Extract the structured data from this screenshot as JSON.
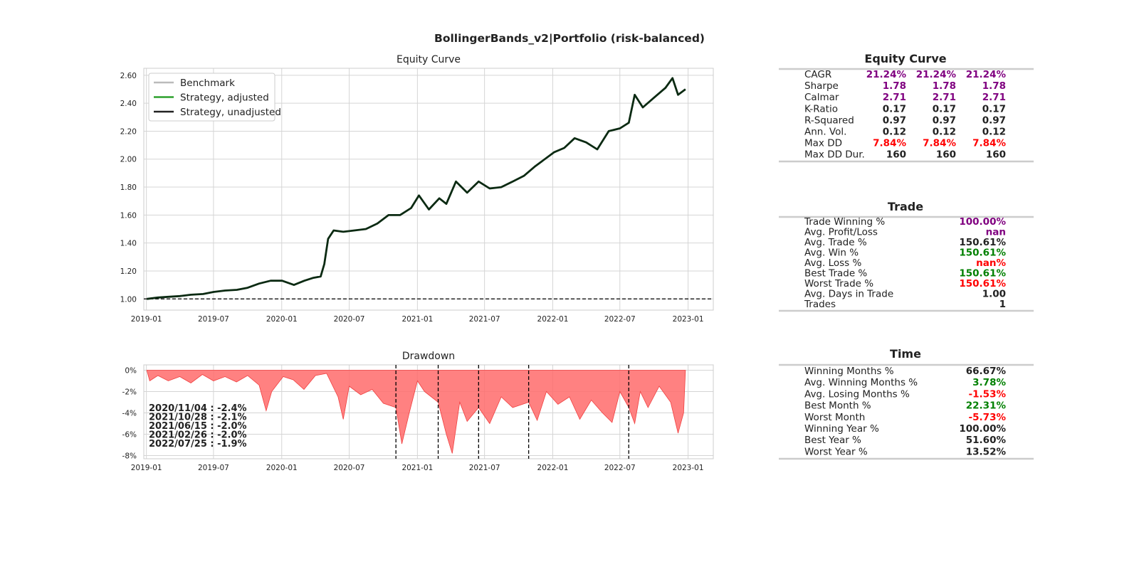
{
  "suptitle": "BollingerBands_v2|Portfolio (risk-balanced)",
  "colors": {
    "purple": "#800080",
    "red": "#ff0000",
    "green": "#008000",
    "black": "#222222",
    "benchmark": "#bbbbbb",
    "adjusted": "#2ca02c",
    "unadjusted": "#222222",
    "equity_line": "#0b2a12",
    "drawdown_fill": "#ff6b6b"
  },
  "chart_data": [
    {
      "type": "line",
      "title": "Equity Curve",
      "xlabel": "",
      "ylabel": "",
      "x_ticks": [
        "2019-01",
        "2019-07",
        "2020-01",
        "2020-07",
        "2021-01",
        "2021-07",
        "2022-01",
        "2022-07",
        "2023-01"
      ],
      "y_ticks": [
        "1.00",
        "1.20",
        "1.40",
        "1.60",
        "1.80",
        "2.00",
        "2.20",
        "2.40",
        "2.60"
      ],
      "xlim": [
        "2018-12-25",
        "2023-03-10"
      ],
      "ylim": [
        0.92,
        2.65
      ],
      "grid": true,
      "legend": {
        "position": "top-left",
        "entries": [
          {
            "name": "Benchmark",
            "color": "#bbbbbb"
          },
          {
            "name": "Strategy, adjusted",
            "color": "#2ca02c"
          },
          {
            "name": "Strategy, unadjusted",
            "color": "#222222"
          }
        ]
      },
      "baseline": 1.0,
      "series": [
        {
          "name": "Strategy, unadjusted",
          "points": [
            [
              "2019-01-02",
              1.0
            ],
            [
              "2019-02-01",
              1.01
            ],
            [
              "2019-03-01",
              1.015
            ],
            [
              "2019-04-01",
              1.02
            ],
            [
              "2019-05-01",
              1.03
            ],
            [
              "2019-06-03",
              1.035
            ],
            [
              "2019-07-01",
              1.05
            ],
            [
              "2019-08-01",
              1.06
            ],
            [
              "2019-09-02",
              1.065
            ],
            [
              "2019-10-01",
              1.08
            ],
            [
              "2019-11-01",
              1.11
            ],
            [
              "2019-12-02",
              1.13
            ],
            [
              "2020-01-02",
              1.13
            ],
            [
              "2020-02-03",
              1.1
            ],
            [
              "2020-03-02",
              1.13
            ],
            [
              "2020-03-25",
              1.15
            ],
            [
              "2020-04-15",
              1.16
            ],
            [
              "2020-04-25",
              1.25
            ],
            [
              "2020-05-05",
              1.43
            ],
            [
              "2020-05-20",
              1.49
            ],
            [
              "2020-06-15",
              1.48
            ],
            [
              "2020-07-15",
              1.49
            ],
            [
              "2020-08-15",
              1.5
            ],
            [
              "2020-09-15",
              1.54
            ],
            [
              "2020-10-15",
              1.6
            ],
            [
              "2020-11-15",
              1.6
            ],
            [
              "2020-12-15",
              1.65
            ],
            [
              "2021-01-05",
              1.74
            ],
            [
              "2021-02-01",
              1.64
            ],
            [
              "2021-03-01",
              1.72
            ],
            [
              "2021-03-20",
              1.68
            ],
            [
              "2021-04-15",
              1.84
            ],
            [
              "2021-05-15",
              1.76
            ],
            [
              "2021-06-15",
              1.84
            ],
            [
              "2021-07-15",
              1.79
            ],
            [
              "2021-08-15",
              1.8
            ],
            [
              "2021-09-15",
              1.84
            ],
            [
              "2021-10-15",
              1.88
            ],
            [
              "2021-11-15",
              1.95
            ],
            [
              "2022-01-05",
              2.05
            ],
            [
              "2022-02-01",
              2.08
            ],
            [
              "2022-03-01",
              2.15
            ],
            [
              "2022-04-01",
              2.12
            ],
            [
              "2022-05-01",
              2.07
            ],
            [
              "2022-06-01",
              2.2
            ],
            [
              "2022-07-01",
              2.22
            ],
            [
              "2022-07-25",
              2.26
            ],
            [
              "2022-08-10",
              2.46
            ],
            [
              "2022-09-01",
              2.37
            ],
            [
              "2022-10-01",
              2.44
            ],
            [
              "2022-11-01",
              2.51
            ],
            [
              "2022-11-20",
              2.58
            ],
            [
              "2022-12-05",
              2.46
            ],
            [
              "2022-12-25",
              2.5
            ]
          ]
        }
      ]
    },
    {
      "type": "area",
      "title": "Drawdown",
      "xlabel": "",
      "ylabel": "",
      "x_ticks": [
        "2019-01",
        "2019-07",
        "2020-01",
        "2020-07",
        "2021-01",
        "2021-07",
        "2022-01",
        "2022-07",
        "2023-01"
      ],
      "y_ticks": [
        "0%",
        "-2%",
        "-4%",
        "-6%",
        "-8%"
      ],
      "xlim": [
        "2018-12-25",
        "2023-03-10"
      ],
      "ylim": [
        -8.3,
        0.5
      ],
      "grid": true,
      "annotations": [
        "2020/11/04 : -2.4%",
        "2021/10/28 : -2.1%",
        "2021/06/15 : -2.0%",
        "2021/02/26 : -2.0%",
        "2022/07/25 : -1.9%"
      ],
      "vlines": [
        "2020-11-04",
        "2021-02-26",
        "2021-06-15",
        "2021-10-28",
        "2022-07-25"
      ],
      "series": [
        {
          "name": "Drawdown",
          "points": [
            [
              "2019-01-02",
              0
            ],
            [
              "2019-01-10",
              -1.0
            ],
            [
              "2019-02-01",
              -0.5
            ],
            [
              "2019-03-01",
              -1.0
            ],
            [
              "2019-04-01",
              -0.6
            ],
            [
              "2019-05-01",
              -1.2
            ],
            [
              "2019-06-01",
              -0.4
            ],
            [
              "2019-07-01",
              -1.0
            ],
            [
              "2019-08-01",
              -0.6
            ],
            [
              "2019-09-01",
              -1.1
            ],
            [
              "2019-10-01",
              -0.5
            ],
            [
              "2019-11-01",
              -1.4
            ],
            [
              "2019-11-20",
              -3.8
            ],
            [
              "2019-12-05",
              -2.0
            ],
            [
              "2020-01-05",
              -0.6
            ],
            [
              "2020-02-01",
              -0.9
            ],
            [
              "2020-03-01",
              -1.8
            ],
            [
              "2020-04-01",
              -0.5
            ],
            [
              "2020-05-01",
              -0.3
            ],
            [
              "2020-06-01",
              -2.5
            ],
            [
              "2020-06-15",
              -4.6
            ],
            [
              "2020-07-01",
              -1.5
            ],
            [
              "2020-08-01",
              -2.3
            ],
            [
              "2020-09-01",
              -1.8
            ],
            [
              "2020-10-01",
              -3.1
            ],
            [
              "2020-11-04",
              -3.5
            ],
            [
              "2020-11-20",
              -6.9
            ],
            [
              "2020-12-10",
              -4.0
            ],
            [
              "2021-01-01",
              -1.0
            ],
            [
              "2021-01-20",
              -2.0
            ],
            [
              "2021-02-26",
              -3.0
            ],
            [
              "2021-03-20",
              -6.0
            ],
            [
              "2021-04-05",
              -7.8
            ],
            [
              "2021-04-25",
              -3.0
            ],
            [
              "2021-05-15",
              -4.8
            ],
            [
              "2021-06-15",
              -3.5
            ],
            [
              "2021-07-15",
              -5.0
            ],
            [
              "2021-08-15",
              -2.5
            ],
            [
              "2021-09-15",
              -3.5
            ],
            [
              "2021-10-28",
              -3.0
            ],
            [
              "2021-11-20",
              -4.7
            ],
            [
              "2021-12-15",
              -2.0
            ],
            [
              "2022-01-15",
              -3.2
            ],
            [
              "2022-02-15",
              -2.5
            ],
            [
              "2022-03-15",
              -4.6
            ],
            [
              "2022-04-15",
              -2.8
            ],
            [
              "2022-05-15",
              -4.0
            ],
            [
              "2022-06-10",
              -4.9
            ],
            [
              "2022-07-01",
              -2.0
            ],
            [
              "2022-07-25",
              -3.5
            ],
            [
              "2022-08-10",
              -5.0
            ],
            [
              "2022-08-25",
              -2.0
            ],
            [
              "2022-09-15",
              -3.5
            ],
            [
              "2022-10-15",
              -1.5
            ],
            [
              "2022-11-15",
              -3.0
            ],
            [
              "2022-12-05",
              -5.9
            ],
            [
              "2022-12-20",
              -4.0
            ],
            [
              "2022-12-25",
              0
            ]
          ]
        }
      ]
    }
  ],
  "tables": [
    {
      "title": "Equity Curve",
      "rows": [
        {
          "label": "CAGR",
          "values": [
            "21.24%",
            "21.24%",
            "21.24%"
          ],
          "color": "purple"
        },
        {
          "label": "Sharpe",
          "values": [
            "1.78",
            "1.78",
            "1.78"
          ],
          "color": "purple"
        },
        {
          "label": "Calmar",
          "values": [
            "2.71",
            "2.71",
            "2.71"
          ],
          "color": "purple"
        },
        {
          "label": "K-Ratio",
          "values": [
            "0.17",
            "0.17",
            "0.17"
          ],
          "color": "black"
        },
        {
          "label": "R-Squared",
          "values": [
            "0.97",
            "0.97",
            "0.97"
          ],
          "color": "black"
        },
        {
          "label": "Ann. Vol.",
          "values": [
            "0.12",
            "0.12",
            "0.12"
          ],
          "color": "black"
        },
        {
          "label": "Max DD",
          "values": [
            "7.84%",
            "7.84%",
            "7.84%"
          ],
          "color": "red"
        },
        {
          "label": "Max DD Dur.",
          "values": [
            "160",
            "160",
            "160"
          ],
          "color": "black"
        }
      ]
    },
    {
      "title": "Trade",
      "rows": [
        {
          "label": "Trade Winning %",
          "values": [
            "100.00%"
          ],
          "color": "purple"
        },
        {
          "label": "Avg. Profit/Loss",
          "values": [
            "nan"
          ],
          "color": "purple"
        },
        {
          "label": "Avg. Trade %",
          "values": [
            "150.61%"
          ],
          "color": "black"
        },
        {
          "label": "Avg. Win %",
          "values": [
            "150.61%"
          ],
          "color": "green"
        },
        {
          "label": "Avg. Loss %",
          "values": [
            "nan%"
          ],
          "color": "red"
        },
        {
          "label": "Best Trade %",
          "values": [
            "150.61%"
          ],
          "color": "green"
        },
        {
          "label": "Worst Trade %",
          "values": [
            "150.61%"
          ],
          "color": "red"
        },
        {
          "label": "Avg. Days in Trade",
          "values": [
            "1.00"
          ],
          "color": "black"
        },
        {
          "label": "Trades",
          "values": [
            "1"
          ],
          "color": "black"
        }
      ]
    },
    {
      "title": "Time",
      "rows": [
        {
          "label": "Winning Months %",
          "values": [
            "66.67%"
          ],
          "color": "black"
        },
        {
          "label": "Avg. Winning Months %",
          "values": [
            "3.78%"
          ],
          "color": "green"
        },
        {
          "label": "Avg. Losing Months %",
          "values": [
            "-1.53%"
          ],
          "color": "red"
        },
        {
          "label": "Best Month %",
          "values": [
            "22.31%"
          ],
          "color": "green"
        },
        {
          "label": "Worst Month",
          "values": [
            "-5.73%"
          ],
          "color": "red"
        },
        {
          "label": "Winning Year %",
          "values": [
            "100.00%"
          ],
          "color": "black"
        },
        {
          "label": "Best Year %",
          "values": [
            "51.60%"
          ],
          "color": "black"
        },
        {
          "label": "Worst Year %",
          "values": [
            "13.52%"
          ],
          "color": "black"
        }
      ]
    }
  ]
}
